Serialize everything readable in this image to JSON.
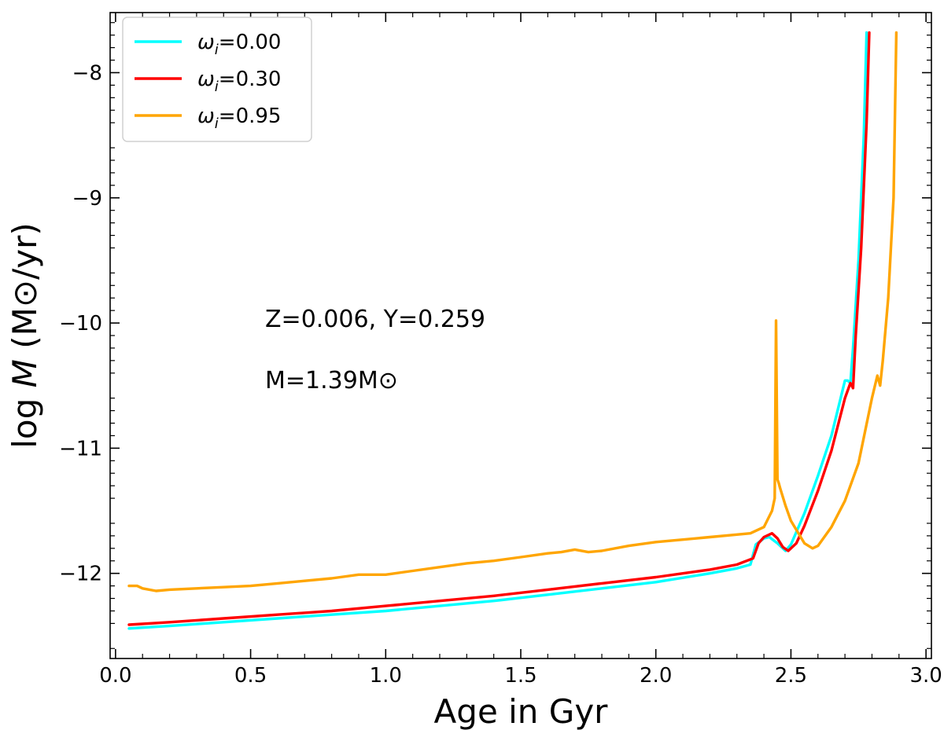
{
  "chart_data": {
    "type": "line",
    "title": "",
    "xlabel": "Age in Gyr",
    "ylabel": "log M (M⊙/yr)",
    "ylabel_parts": {
      "prefix": "log ",
      "symbol": "M",
      "unit": " (M⊙/yr)"
    },
    "xlim": [
      -0.02,
      3.02
    ],
    "ylim": [
      -12.68,
      -7.52
    ],
    "xticks": [
      0.0,
      0.5,
      1.0,
      1.5,
      2.0,
      2.5,
      3.0
    ],
    "xtick_labels": [
      "0.0",
      "0.5",
      "1.0",
      "1.5",
      "2.0",
      "2.5",
      "3.0"
    ],
    "yticks": [
      -12,
      -11,
      -10,
      -9,
      -8
    ],
    "ytick_labels": [
      "−12",
      "−11",
      "−10",
      "−9",
      "−8"
    ],
    "grid": false,
    "legend_position": "top-left",
    "annotations": [
      "Z=0.006,  Y=0.259",
      "M=1.39M⊙"
    ],
    "series": [
      {
        "name": "ωi=0.00",
        "symbol": "ω",
        "subscript": "i",
        "value": "=0.00",
        "color": "#00ffff",
        "x": [
          0.05,
          0.2,
          0.4,
          0.6,
          0.8,
          1.0,
          1.2,
          1.4,
          1.6,
          1.8,
          2.0,
          2.2,
          2.3,
          2.35,
          2.37,
          2.4,
          2.42,
          2.45,
          2.48,
          2.5,
          2.55,
          2.6,
          2.65,
          2.7,
          2.71,
          2.72,
          2.73,
          2.75,
          2.77,
          2.78
        ],
        "y": [
          -12.44,
          -12.42,
          -12.39,
          -12.36,
          -12.33,
          -12.3,
          -12.26,
          -12.22,
          -12.17,
          -12.12,
          -12.07,
          -12.0,
          -11.96,
          -11.93,
          -11.77,
          -11.72,
          -11.71,
          -11.76,
          -11.82,
          -11.77,
          -11.52,
          -11.22,
          -10.9,
          -10.46,
          -10.46,
          -10.48,
          -10.2,
          -9.5,
          -8.5,
          -7.68
        ]
      },
      {
        "name": "ωi=0.30",
        "symbol": "ω",
        "subscript": "i",
        "value": "=0.30",
        "color": "#ff0000",
        "x": [
          0.05,
          0.2,
          0.4,
          0.6,
          0.8,
          1.0,
          1.2,
          1.4,
          1.6,
          1.8,
          2.0,
          2.2,
          2.3,
          2.36,
          2.38,
          2.4,
          2.43,
          2.45,
          2.47,
          2.49,
          2.52,
          2.55,
          2.6,
          2.65,
          2.7,
          2.72,
          2.73,
          2.74,
          2.76,
          2.78,
          2.79
        ],
        "y": [
          -12.41,
          -12.39,
          -12.36,
          -12.33,
          -12.3,
          -12.26,
          -12.22,
          -12.18,
          -12.13,
          -12.08,
          -12.03,
          -11.97,
          -11.93,
          -11.88,
          -11.76,
          -11.71,
          -11.68,
          -11.72,
          -11.79,
          -11.82,
          -11.76,
          -11.62,
          -11.34,
          -11.02,
          -10.6,
          -10.48,
          -10.52,
          -10.1,
          -9.4,
          -8.4,
          -7.68
        ]
      },
      {
        "name": "ωi=0.95",
        "symbol": "ω",
        "subscript": "i",
        "value": "=0.95",
        "color": "#ffa500",
        "x": [
          0.05,
          0.08,
          0.1,
          0.15,
          0.2,
          0.3,
          0.4,
          0.5,
          0.6,
          0.7,
          0.8,
          0.9,
          0.95,
          1.0,
          1.1,
          1.2,
          1.3,
          1.4,
          1.5,
          1.6,
          1.65,
          1.7,
          1.75,
          1.8,
          1.9,
          2.0,
          2.1,
          2.2,
          2.3,
          2.35,
          2.4,
          2.43,
          2.44,
          2.445,
          2.45,
          2.455,
          2.46,
          2.48,
          2.5,
          2.55,
          2.58,
          2.6,
          2.65,
          2.7,
          2.75,
          2.8,
          2.82,
          2.83,
          2.84,
          2.86,
          2.88,
          2.89
        ],
        "y": [
          -12.1,
          -12.1,
          -12.12,
          -12.14,
          -12.13,
          -12.12,
          -12.11,
          -12.1,
          -12.08,
          -12.06,
          -12.04,
          -12.01,
          -12.01,
          -12.01,
          -11.98,
          -11.95,
          -11.92,
          -11.9,
          -11.87,
          -11.84,
          -11.83,
          -11.81,
          -11.83,
          -11.82,
          -11.78,
          -11.75,
          -11.73,
          -11.71,
          -11.69,
          -11.68,
          -11.63,
          -11.5,
          -11.4,
          -9.98,
          -11.25,
          -11.28,
          -11.32,
          -11.46,
          -11.58,
          -11.76,
          -11.8,
          -11.78,
          -11.63,
          -11.42,
          -11.12,
          -10.6,
          -10.42,
          -10.5,
          -10.3,
          -9.8,
          -9.0,
          -7.68
        ]
      }
    ]
  }
}
